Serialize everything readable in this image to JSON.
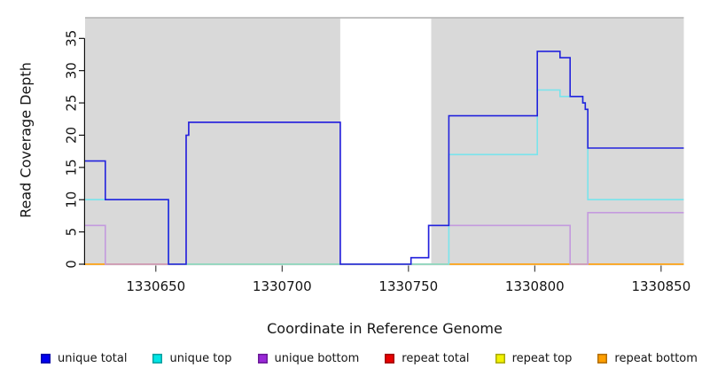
{
  "chart_data": {
    "type": "line",
    "line_style": "step",
    "title": "",
    "xlabel": "Coordinate in Reference Genome",
    "ylabel": "Read Coverage Depth",
    "xlim": [
      1330622,
      1330859
    ],
    "ylim": [
      0,
      38
    ],
    "grid": false,
    "legend_position": "bottom",
    "plot_background": "#d9d9d9",
    "x_tick_values": [
      1330650,
      1330700,
      1330750,
      1330800,
      1330850
    ],
    "x_tick_labels": [
      "1330650",
      "1330700",
      "1330750",
      "1330800",
      "1330850"
    ],
    "y_tick_values": [
      0,
      5,
      10,
      15,
      20,
      25,
      30,
      35
    ],
    "y_tick_labels": [
      "0",
      "5",
      "10",
      "15",
      "20",
      "25",
      "30",
      "35"
    ],
    "highlight_band": {
      "x_start": 1330723,
      "x_end": 1330759,
      "color": "#ffffff"
    },
    "series": [
      {
        "name": "unique total",
        "color": "#2222dd",
        "legend_color": "#0000f0",
        "steps": [
          [
            1330622,
            16
          ],
          [
            1330630,
            10
          ],
          [
            1330655,
            0
          ],
          [
            1330662,
            20
          ],
          [
            1330663,
            22
          ],
          [
            1330723,
            0
          ],
          [
            1330751,
            1
          ],
          [
            1330758,
            6
          ],
          [
            1330766,
            23
          ],
          [
            1330801,
            33
          ],
          [
            1330810,
            32
          ],
          [
            1330814,
            26
          ],
          [
            1330819,
            25
          ],
          [
            1330820,
            24
          ],
          [
            1330821,
            18
          ],
          [
            1330859,
            18
          ]
        ]
      },
      {
        "name": "unique top",
        "color": "#79e4ec",
        "legend_color": "#00e6e6",
        "steps": [
          [
            1330622,
            10
          ],
          [
            1330655,
            0
          ],
          [
            1330766,
            17
          ],
          [
            1330801,
            27
          ],
          [
            1330810,
            26
          ],
          [
            1330819,
            25
          ],
          [
            1330820,
            24
          ],
          [
            1330821,
            10
          ],
          [
            1330859,
            10
          ]
        ]
      },
      {
        "name": "unique bottom",
        "color": "#c49ade",
        "legend_color": "#9a28d8",
        "steps": [
          [
            1330622,
            6
          ],
          [
            1330630,
            0
          ],
          [
            1330662,
            20
          ],
          [
            1330663,
            22
          ],
          [
            1330723,
            0
          ],
          [
            1330751,
            1
          ],
          [
            1330758,
            6
          ],
          [
            1330814,
            0
          ],
          [
            1330821,
            8
          ],
          [
            1330859,
            8
          ]
        ]
      },
      {
        "name": "repeat total",
        "color": "#e04050",
        "legend_color": "#e80000",
        "steps": [
          [
            1330622,
            0
          ],
          [
            1330859,
            0
          ]
        ]
      },
      {
        "name": "repeat top",
        "color": "#efe92a",
        "legend_color": "#f2f200",
        "steps": [
          [
            1330622,
            0
          ],
          [
            1330859,
            0
          ]
        ]
      },
      {
        "name": "repeat bottom",
        "color": "#ffa51e",
        "legend_color": "#ff9f00",
        "steps": [
          [
            1330622,
            0
          ],
          [
            1330859,
            0
          ]
        ]
      }
    ]
  }
}
